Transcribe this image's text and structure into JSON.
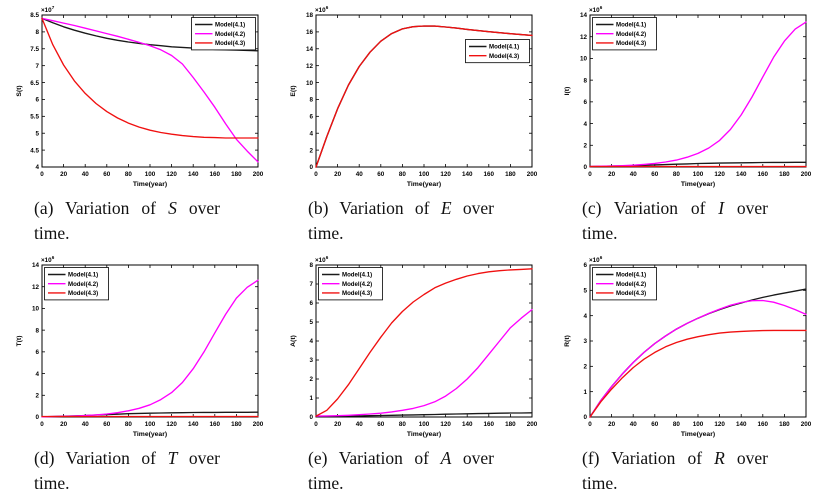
{
  "figure": {
    "background": "#ffffff",
    "text_color": "#111111",
    "axis_color": "#000000"
  },
  "chart_data": [
    {
      "id": "a",
      "type": "line",
      "caption": {
        "prefix": "(a) Variation of ",
        "variable": "S",
        "suffix": " over time."
      },
      "xlabel": "Time(year)",
      "ylabel": "S(t)",
      "exponent_base": "×10",
      "exponent_power": "7",
      "xlim": [
        0,
        200
      ],
      "ylim": [
        4,
        8.5
      ],
      "xticks": [
        0,
        20,
        40,
        60,
        80,
        100,
        120,
        140,
        160,
        180,
        200
      ],
      "yticks": [
        4,
        4.5,
        5,
        5.5,
        6,
        6.5,
        7,
        7.5,
        8,
        8.5
      ],
      "x": [
        0,
        10,
        20,
        30,
        40,
        50,
        60,
        70,
        80,
        90,
        100,
        110,
        120,
        130,
        140,
        150,
        160,
        170,
        180,
        190,
        200
      ],
      "legend": {
        "anchor": "top-right",
        "dy": 0
      },
      "series": [
        {
          "name": "Model(4.1)",
          "color": "#1a1a1a",
          "values": [
            8.4,
            8.27,
            8.15,
            8.05,
            7.96,
            7.88,
            7.81,
            7.75,
            7.7,
            7.66,
            7.62,
            7.59,
            7.56,
            7.54,
            7.52,
            7.5,
            7.48,
            7.47,
            7.46,
            7.45,
            7.44
          ]
        },
        {
          "name": "Model(4.2)",
          "color": "#ff00ff",
          "values": [
            8.4,
            8.33,
            8.26,
            8.19,
            8.11,
            8.03,
            7.95,
            7.87,
            7.78,
            7.69,
            7.59,
            7.47,
            7.3,
            7.05,
            6.65,
            6.22,
            5.77,
            5.28,
            4.82,
            4.47,
            4.15
          ]
        },
        {
          "name": "Model(4.3)",
          "color": "#f01010",
          "values": [
            8.4,
            7.62,
            7.02,
            6.55,
            6.18,
            5.88,
            5.64,
            5.45,
            5.3,
            5.18,
            5.09,
            5.02,
            4.97,
            4.93,
            4.9,
            4.88,
            4.87,
            4.86,
            4.86,
            4.86,
            4.86
          ]
        }
      ]
    },
    {
      "id": "b",
      "type": "line",
      "caption": {
        "prefix": "(b) Variation of ",
        "variable": "E",
        "suffix": " over time."
      },
      "xlabel": "Time(year)",
      "ylabel": "E(t)",
      "exponent_base": "×10",
      "exponent_power": "6",
      "xlim": [
        0,
        200
      ],
      "ylim": [
        0,
        18
      ],
      "xticks": [
        0,
        20,
        40,
        60,
        80,
        100,
        120,
        140,
        160,
        180,
        200
      ],
      "yticks": [
        0,
        2,
        4,
        6,
        8,
        10,
        12,
        14,
        16,
        18
      ],
      "x": [
        0,
        10,
        20,
        30,
        40,
        50,
        60,
        70,
        80,
        90,
        100,
        110,
        120,
        130,
        140,
        150,
        160,
        170,
        180,
        190,
        200
      ],
      "legend": {
        "anchor": "top-right",
        "dy": 22
      },
      "series": [
        {
          "name": "Model(4.1)",
          "color": "#1a1a1a",
          "values": [
            0,
            3.6,
            6.9,
            9.7,
            11.9,
            13.6,
            14.9,
            15.8,
            16.35,
            16.62,
            16.7,
            16.68,
            16.58,
            16.45,
            16.3,
            16.15,
            16.02,
            15.9,
            15.79,
            15.68,
            15.58
          ]
        },
        {
          "name": "Model(4.3)",
          "color": "#f01010",
          "values": [
            0,
            3.6,
            6.9,
            9.7,
            11.9,
            13.6,
            14.9,
            15.8,
            16.35,
            16.62,
            16.7,
            16.68,
            16.58,
            16.45,
            16.3,
            16.15,
            16.02,
            15.9,
            15.79,
            15.68,
            15.58
          ]
        }
      ]
    },
    {
      "id": "c",
      "type": "line",
      "caption": {
        "prefix": "(c) Variation of ",
        "variable": "I",
        "suffix": " over time."
      },
      "xlabel": "Time(year)",
      "ylabel": "I(t)",
      "exponent_base": "×10",
      "exponent_power": "6",
      "xlim": [
        0,
        200
      ],
      "ylim": [
        0,
        14
      ],
      "xticks": [
        0,
        20,
        40,
        60,
        80,
        100,
        120,
        140,
        160,
        180,
        200
      ],
      "yticks": [
        0,
        2,
        4,
        6,
        8,
        10,
        12,
        14
      ],
      "x": [
        0,
        10,
        20,
        30,
        40,
        50,
        60,
        70,
        80,
        90,
        100,
        110,
        120,
        130,
        140,
        150,
        160,
        170,
        180,
        190,
        200
      ],
      "legend": {
        "anchor": "top-left",
        "dy": 0
      },
      "series": [
        {
          "name": "Model(4.1)",
          "color": "#1a1a1a",
          "values": [
            0.05,
            0.06,
            0.08,
            0.1,
            0.13,
            0.16,
            0.19,
            0.22,
            0.26,
            0.29,
            0.32,
            0.34,
            0.36,
            0.38,
            0.39,
            0.4,
            0.41,
            0.42,
            0.42,
            0.43,
            0.43
          ]
        },
        {
          "name": "Model(4.2)",
          "color": "#ff00ff",
          "values": [
            0.05,
            0.07,
            0.09,
            0.12,
            0.17,
            0.24,
            0.33,
            0.46,
            0.64,
            0.9,
            1.25,
            1.75,
            2.45,
            3.45,
            4.8,
            6.45,
            8.3,
            10.1,
            11.6,
            12.7,
            13.35
          ]
        },
        {
          "name": "Model(4.3)",
          "color": "#f01010",
          "values": [
            0.05,
            0.05,
            0.05,
            0.05,
            0.05,
            0.05,
            0.05,
            0.05,
            0.05,
            0.05,
            0.05,
            0.05,
            0.05,
            0.05,
            0.05,
            0.05,
            0.05,
            0.05,
            0.05,
            0.05,
            0.05
          ]
        }
      ]
    },
    {
      "id": "d",
      "type": "line",
      "caption": {
        "prefix": "(d) Variation of ",
        "variable": "T",
        "suffix": " over time."
      },
      "xlabel": "Time(year)",
      "ylabel": "T(t)",
      "exponent_base": "×10",
      "exponent_power": "6",
      "xlim": [
        0,
        200
      ],
      "ylim": [
        0,
        14
      ],
      "xticks": [
        0,
        20,
        40,
        60,
        80,
        100,
        120,
        140,
        160,
        180,
        200
      ],
      "yticks": [
        0,
        2,
        4,
        6,
        8,
        10,
        12,
        14
      ],
      "x": [
        0,
        10,
        20,
        30,
        40,
        50,
        60,
        70,
        80,
        90,
        100,
        110,
        120,
        130,
        140,
        150,
        160,
        170,
        180,
        190,
        200
      ],
      "legend": {
        "anchor": "top-left",
        "dy": 0
      },
      "series": [
        {
          "name": "Model(4.1)",
          "color": "#1a1a1a",
          "values": [
            0.02,
            0.04,
            0.07,
            0.1,
            0.14,
            0.18,
            0.22,
            0.26,
            0.3,
            0.33,
            0.35,
            0.37,
            0.39,
            0.4,
            0.41,
            0.42,
            0.42,
            0.43,
            0.43,
            0.43,
            0.44
          ]
        },
        {
          "name": "Model(4.2)",
          "color": "#ff00ff",
          "values": [
            0.02,
            0.04,
            0.06,
            0.09,
            0.13,
            0.19,
            0.28,
            0.4,
            0.57,
            0.8,
            1.12,
            1.6,
            2.25,
            3.18,
            4.45,
            6.0,
            7.75,
            9.45,
            10.95,
            11.95,
            12.6
          ]
        },
        {
          "name": "Model(4.3)",
          "color": "#f01010",
          "values": [
            0.05,
            0.05,
            0.05,
            0.05,
            0.05,
            0.05,
            0.05,
            0.05,
            0.05,
            0.05,
            0.05,
            0.05,
            0.05,
            0.05,
            0.05,
            0.05,
            0.05,
            0.05,
            0.05,
            0.05,
            0.05
          ]
        }
      ]
    },
    {
      "id": "e",
      "type": "line",
      "caption": {
        "prefix": "(e) Variation of ",
        "variable": "A",
        "suffix": " over time."
      },
      "xlabel": "Time(year)",
      "ylabel": "A(t)",
      "exponent_base": "×10",
      "exponent_power": "6",
      "xlim": [
        0,
        200
      ],
      "ylim": [
        0,
        8
      ],
      "xticks": [
        0,
        20,
        40,
        60,
        80,
        100,
        120,
        140,
        160,
        180,
        200
      ],
      "yticks": [
        0,
        1,
        2,
        3,
        4,
        5,
        6,
        7,
        8
      ],
      "x": [
        0,
        10,
        20,
        30,
        40,
        50,
        60,
        70,
        80,
        90,
        100,
        110,
        120,
        130,
        140,
        150,
        160,
        170,
        180,
        190,
        200
      ],
      "legend": {
        "anchor": "top-left",
        "dy": 0
      },
      "series": [
        {
          "name": "Model(4.1)",
          "color": "#1a1a1a",
          "values": [
            0.02,
            0.03,
            0.04,
            0.05,
            0.06,
            0.07,
            0.08,
            0.09,
            0.1,
            0.11,
            0.12,
            0.13,
            0.15,
            0.16,
            0.17,
            0.18,
            0.19,
            0.2,
            0.21,
            0.21,
            0.22
          ]
        },
        {
          "name": "Model(4.2)",
          "color": "#ff00ff",
          "values": [
            0.05,
            0.06,
            0.07,
            0.09,
            0.12,
            0.16,
            0.2,
            0.27,
            0.35,
            0.45,
            0.6,
            0.8,
            1.1,
            1.5,
            2.0,
            2.6,
            3.3,
            4.0,
            4.7,
            5.2,
            5.65
          ]
        },
        {
          "name": "Model(4.3)",
          "color": "#f01010",
          "values": [
            0.05,
            0.35,
            0.95,
            1.7,
            2.55,
            3.4,
            4.2,
            4.95,
            5.55,
            6.05,
            6.45,
            6.8,
            7.05,
            7.25,
            7.42,
            7.55,
            7.64,
            7.7,
            7.74,
            7.77,
            7.8
          ]
        }
      ]
    },
    {
      "id": "f",
      "type": "line",
      "caption": {
        "prefix": "(f) Variation of ",
        "variable": "R",
        "suffix": " over time."
      },
      "xlabel": "Time(year)",
      "ylabel": "R(t)",
      "exponent_base": "×10",
      "exponent_power": "6",
      "xlim": [
        0,
        200
      ],
      "ylim": [
        0,
        6
      ],
      "xticks": [
        0,
        20,
        40,
        60,
        80,
        100,
        120,
        140,
        160,
        180,
        200
      ],
      "yticks": [
        0,
        1,
        2,
        3,
        4,
        5,
        6
      ],
      "x": [
        0,
        10,
        20,
        30,
        40,
        50,
        60,
        70,
        80,
        90,
        100,
        110,
        120,
        130,
        140,
        150,
        160,
        170,
        180,
        190,
        200
      ],
      "legend": {
        "anchor": "top-left",
        "dy": 0
      },
      "series": [
        {
          "name": "Model(4.1)",
          "color": "#1a1a1a",
          "values": [
            0,
            0.65,
            1.2,
            1.7,
            2.15,
            2.55,
            2.9,
            3.2,
            3.47,
            3.7,
            3.9,
            4.08,
            4.24,
            4.38,
            4.5,
            4.62,
            4.72,
            4.81,
            4.89,
            4.97,
            5.05
          ]
        },
        {
          "name": "Model(4.2)",
          "color": "#ff00ff",
          "values": [
            0,
            0.65,
            1.2,
            1.7,
            2.15,
            2.55,
            2.9,
            3.2,
            3.47,
            3.7,
            3.9,
            4.09,
            4.26,
            4.41,
            4.52,
            4.59,
            4.6,
            4.53,
            4.4,
            4.24,
            4.05
          ]
        },
        {
          "name": "Model(4.3)",
          "color": "#f01010",
          "values": [
            0,
            0.6,
            1.1,
            1.55,
            1.95,
            2.28,
            2.55,
            2.77,
            2.94,
            3.07,
            3.17,
            3.25,
            3.31,
            3.35,
            3.38,
            3.4,
            3.41,
            3.42,
            3.42,
            3.42,
            3.42
          ]
        }
      ]
    }
  ]
}
